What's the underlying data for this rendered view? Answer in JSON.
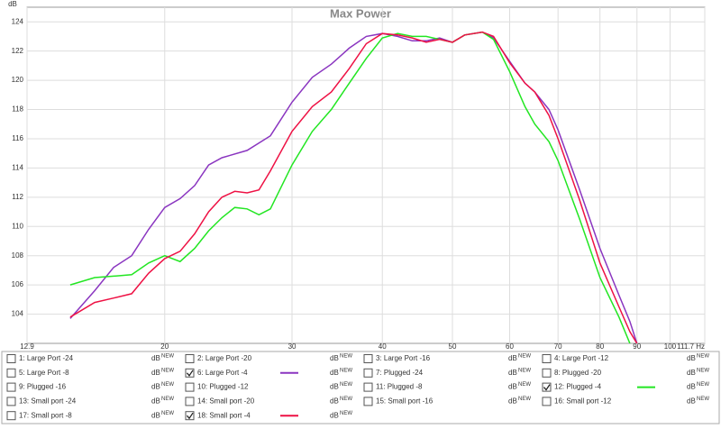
{
  "chart_data": {
    "type": "line",
    "title": "Max Power",
    "y_label": "dB",
    "log_x": true,
    "grid": true,
    "xlim": [
      12.9,
      111.7
    ],
    "xticks": [
      12.9,
      20,
      30,
      40,
      50,
      60,
      70,
      80,
      90,
      100,
      {
        "value": 111.7,
        "label": "111.7 Hz"
      }
    ],
    "ylim": [
      102,
      125
    ],
    "yticks": [
      104,
      106,
      108,
      110,
      112,
      114,
      116,
      118,
      120,
      122,
      124
    ],
    "unit_label": "dB",
    "unit_sup": "NEW",
    "series": [
      {
        "name": "1: Large Port -24",
        "color": "#d98b00",
        "checked": false
      },
      {
        "name": "2: Large Port -20",
        "color": "#2db36b",
        "checked": false
      },
      {
        "name": "3: Large Port -16",
        "color": "#9b30c8",
        "checked": false
      },
      {
        "name": "4: Large Port -12",
        "color": "#a040c0",
        "checked": false
      },
      {
        "name": "5: Large Port -8",
        "color": "#30a090",
        "checked": false
      },
      {
        "name": "6: Large Port -4",
        "color": "#8a35c0",
        "checked": true,
        "x": [
          14.8,
          16,
          17,
          18,
          19,
          20,
          21,
          22,
          23,
          24,
          26,
          28,
          30,
          32,
          34,
          36,
          38,
          40,
          42,
          44,
          46,
          48,
          50,
          52,
          55,
          57,
          60,
          63,
          65,
          68,
          70,
          75,
          80,
          85,
          88,
          90
        ],
        "values": [
          103.7,
          105.6,
          107.2,
          108.0,
          109.8,
          111.3,
          111.9,
          112.8,
          114.2,
          114.7,
          115.2,
          116.2,
          118.5,
          120.2,
          121.1,
          122.2,
          123.0,
          123.2,
          123.0,
          122.7,
          122.7,
          122.9,
          122.6,
          123.1,
          123.3,
          122.9,
          121.3,
          119.8,
          119.2,
          118.0,
          116.6,
          112.5,
          108.5,
          105.3,
          103.5,
          102.0
        ]
      },
      {
        "name": "7: Plugged -24",
        "color": "#8a2bc0",
        "checked": false
      },
      {
        "name": "8: Plugged -20",
        "color": "#3070b0",
        "checked": false
      },
      {
        "name": "9: Plugged -16",
        "color": "#d01010",
        "checked": false
      },
      {
        "name": "10: Plugged -12",
        "color": "#208020",
        "checked": false
      },
      {
        "name": "11: Plugged -8",
        "color": "#3050c0",
        "checked": false
      },
      {
        "name": "12: Plugged -4",
        "color": "#22e622",
        "checked": true,
        "x": [
          14.8,
          16,
          17,
          18,
          19,
          20,
          21,
          22,
          23,
          24,
          25,
          26,
          27,
          28,
          30,
          32,
          34,
          36,
          38,
          40,
          42,
          44,
          46,
          48,
          50,
          52,
          55,
          57,
          60,
          63,
          65,
          68,
          70,
          75,
          80,
          85,
          88
        ],
        "values": [
          106.0,
          106.5,
          106.6,
          106.7,
          107.5,
          108.0,
          107.6,
          108.5,
          109.7,
          110.6,
          111.3,
          111.2,
          110.8,
          111.2,
          114.2,
          116.5,
          118.0,
          119.8,
          121.5,
          122.9,
          123.2,
          123.0,
          123.0,
          122.8,
          122.6,
          123.1,
          123.3,
          122.8,
          120.6,
          118.2,
          117.0,
          115.8,
          114.5,
          110.5,
          106.5,
          103.8,
          102.0
        ]
      },
      {
        "name": "13: Small port -24",
        "color": "#2090a0",
        "checked": false
      },
      {
        "name": "14: Small port -20",
        "color": "#d0a000",
        "checked": false
      },
      {
        "name": "15: Small port -16",
        "color": "#30b040",
        "checked": false
      },
      {
        "name": "16: Small port -12",
        "color": "#9030b0",
        "checked": false
      },
      {
        "name": "17: Small port -8",
        "color": "#c030c0",
        "checked": false
      },
      {
        "name": "18: Small port -4",
        "color": "#ee1144",
        "checked": true,
        "x": [
          14.8,
          16,
          17,
          18,
          19,
          20,
          21,
          22,
          23,
          24,
          25,
          26,
          27,
          28,
          30,
          32,
          34,
          36,
          38,
          40,
          42,
          44,
          46,
          48,
          50,
          52,
          55,
          57,
          60,
          63,
          65,
          68,
          70,
          75,
          80,
          85,
          88,
          90
        ],
        "values": [
          103.8,
          104.8,
          105.1,
          105.4,
          106.8,
          107.8,
          108.3,
          109.5,
          111.0,
          112.0,
          112.4,
          112.3,
          112.5,
          113.8,
          116.5,
          118.2,
          119.2,
          120.8,
          122.5,
          123.2,
          123.1,
          122.9,
          122.6,
          122.8,
          122.6,
          123.1,
          123.3,
          123.0,
          121.2,
          119.8,
          119.2,
          117.6,
          116.0,
          111.8,
          107.5,
          104.5,
          102.8,
          102.0
        ]
      }
    ]
  }
}
